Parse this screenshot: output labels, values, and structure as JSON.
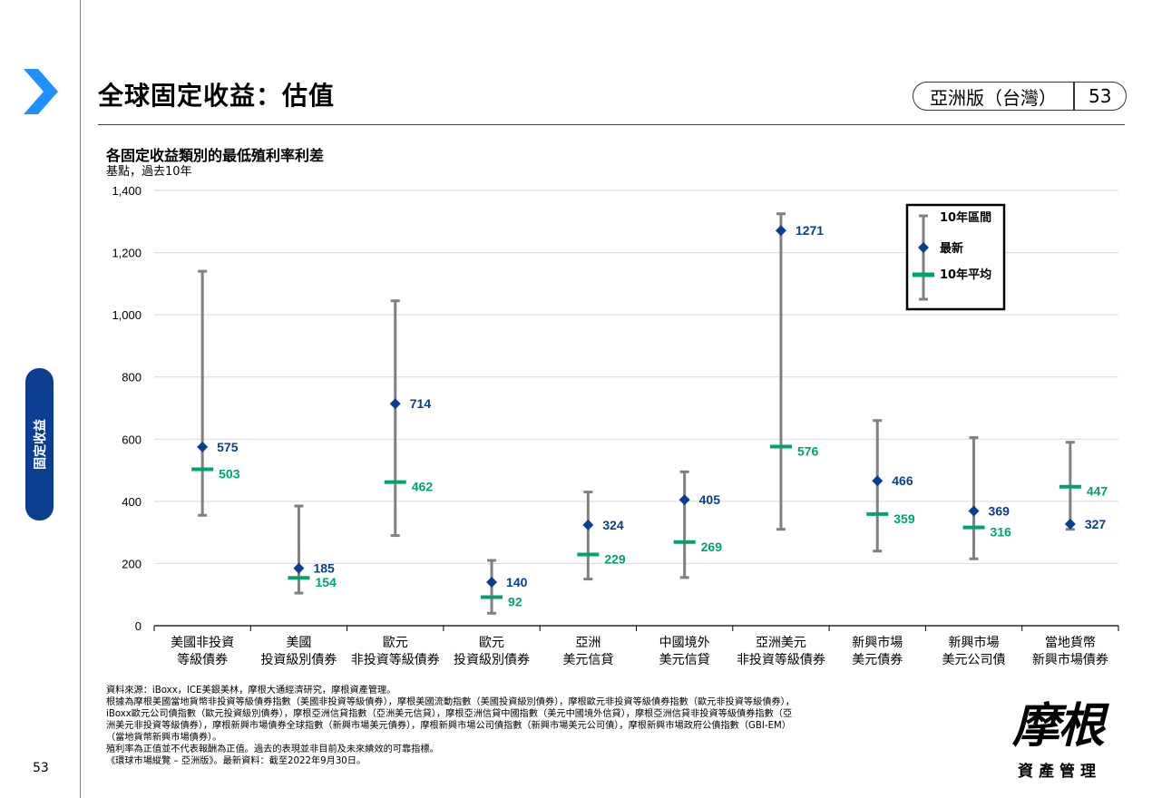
{
  "header": {
    "title": "全球固定收益：估值",
    "edition": "亞洲版（台灣）",
    "page_number": "53"
  },
  "side_tab": {
    "label": "固定收益"
  },
  "footer": {
    "page_number": "53"
  },
  "logo": {
    "main": "摩根",
    "sub": "資產管理"
  },
  "chart_caption": {
    "title": "各固定收益類別的最低殖利率利差",
    "subtitle": "基點，過去10年"
  },
  "colors": {
    "range": "#808080",
    "latest": "#0b3d91",
    "average": "#00a36c",
    "accent": "#1e90ff",
    "tab": "#0b3d91"
  },
  "chart_data": {
    "type": "range",
    "categories": [
      [
        "美國非投資",
        "等級債券"
      ],
      [
        "美國",
        "投資級別債券"
      ],
      [
        "歐元",
        "非投資等級債券"
      ],
      [
        "歐元",
        "投資級別債券"
      ],
      [
        "亞洲",
        "美元信貸"
      ],
      [
        "中國境外",
        "美元信貸"
      ],
      [
        "亞洲美元",
        "非投資等級債券"
      ],
      [
        "新興市場",
        "美元債券"
      ],
      [
        "新興市場",
        "美元公司債"
      ],
      [
        "當地貨幣",
        "新興市場債券"
      ]
    ],
    "series": [
      {
        "name": "10年區間",
        "low": [
          355,
          105,
          290,
          40,
          150,
          155,
          310,
          240,
          215,
          310
        ],
        "high": [
          1140,
          385,
          1045,
          210,
          430,
          495,
          1325,
          660,
          605,
          590
        ]
      },
      {
        "name": "最新",
        "values": [
          575,
          185,
          714,
          140,
          324,
          405,
          1271,
          466,
          369,
          327
        ]
      },
      {
        "name": "10年平均",
        "values": [
          503,
          154,
          462,
          92,
          229,
          269,
          576,
          359,
          316,
          447
        ]
      }
    ],
    "ylim": [
      0,
      1400
    ],
    "yticks": [
      0,
      200,
      400,
      600,
      800,
      1000,
      1200,
      1400
    ],
    "ytick_labels": [
      "0",
      "200",
      "400",
      "600",
      "800",
      "1,000",
      "1,200",
      "1,400"
    ],
    "grid": true,
    "legend_position": "top-right"
  },
  "footnotes": [
    "資料來源：iBoxx，ICE美銀美林，摩根大通經濟研究，摩根資產管理。",
    "根據為摩根美國當地貨幣非投資等級債券指數（美國非投資等級債券），摩根美國流動指數（美國投資級別債券），摩根歐元非投資等級債券指數（歐元非投資等級債券），",
    "iBoxx歐元公司債指數（歐元投資級別債券），摩根亞洲信貸指數（亞洲美元信貸），摩根亞洲信貸中國指數（美元中國境外信貸），摩根亞洲信貸非投資等級債券指數（亞",
    "洲美元非投資等級債券），摩根新興市場債券全球指數（新興市場美元債券），摩根新興市場公司債指數（新興市場美元公司債），摩根新興市場政府公債指數（GBI-EM）",
    "（當地貨幣新興市場債券）。",
    "殖利率為正值並不代表報酬為正值。過去的表現並非目前及未來績效的可靠指標。",
    "《環球市場縱覽 – 亞洲版》。最新資料：截至2022年9月30日。"
  ]
}
